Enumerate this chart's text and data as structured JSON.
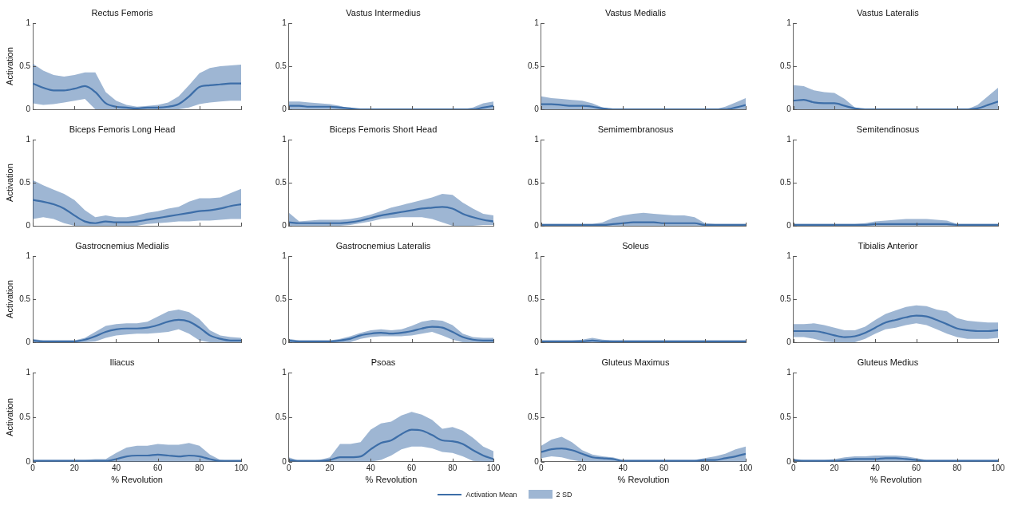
{
  "chart_data": [
    {
      "type": "line",
      "title": "Rectus Femoris",
      "ylabel": "Activation",
      "x": [
        0,
        5,
        10,
        15,
        20,
        25,
        30,
        35,
        40,
        45,
        50,
        55,
        60,
        65,
        70,
        75,
        80,
        85,
        90,
        95,
        100
      ],
      "xlim": [
        0,
        100
      ],
      "xticks": [
        {
          "value": 0,
          "label": null
        },
        {
          "value": 20,
          "label": null
        },
        {
          "value": 40,
          "label": null
        },
        {
          "value": 60,
          "label": null
        },
        {
          "value": 80,
          "label": null
        },
        {
          "value": 100,
          "label": null
        }
      ],
      "ylim": [
        0,
        1
      ],
      "yticks": [
        0,
        0.5,
        1
      ],
      "tick_labels": "y",
      "grid": false,
      "marker": "none",
      "series": [
        {
          "color": "#3d6ea8",
          "values": [
            0.3,
            0.25,
            0.22,
            0.22,
            0.24,
            0.27,
            0.2,
            0.07,
            0.03,
            0.02,
            0.01,
            0.02,
            0.02,
            0.03,
            0.06,
            0.15,
            0.26,
            0.28,
            0.29,
            0.3,
            0.3
          ],
          "lower": [
            0.07,
            0.05,
            0.06,
            0.08,
            0.1,
            0.12,
            0,
            0,
            0,
            0,
            0,
            0,
            0,
            0,
            0,
            0.02,
            0.06,
            0.08,
            0.09,
            0.1,
            0.1
          ],
          "upper": [
            0.53,
            0.45,
            0.4,
            0.38,
            0.4,
            0.43,
            0.43,
            0.2,
            0.1,
            0.05,
            0.03,
            0.04,
            0.05,
            0.08,
            0.15,
            0.28,
            0.42,
            0.48,
            0.5,
            0.51,
            0.52
          ]
        }
      ]
    },
    {
      "type": "line",
      "title": "Vastus Intermedius",
      "x": [
        0,
        5,
        10,
        15,
        20,
        25,
        30,
        35,
        40,
        45,
        50,
        55,
        60,
        65,
        70,
        75,
        80,
        85,
        90,
        95,
        100
      ],
      "xlim": [
        0,
        100
      ],
      "xticks": [
        {
          "value": 0,
          "label": null
        },
        {
          "value": 20,
          "label": null
        },
        {
          "value": 40,
          "label": null
        },
        {
          "value": 60,
          "label": null
        },
        {
          "value": 80,
          "label": null
        },
        {
          "value": 100,
          "label": null
        }
      ],
      "ylim": [
        0,
        1
      ],
      "yticks": [
        0,
        0.5,
        1
      ],
      "tick_labels": "y",
      "grid": false,
      "marker": "none",
      "series": [
        {
          "color": "#3d6ea8",
          "values": [
            0.04,
            0.04,
            0.03,
            0.03,
            0.03,
            0.02,
            0.01,
            0,
            0,
            0,
            0,
            0,
            0,
            0,
            0,
            0,
            0,
            0,
            0,
            0.02,
            0.04
          ],
          "lower": [
            0,
            0,
            0,
            0,
            0,
            0,
            0,
            0,
            0,
            0,
            0,
            0,
            0,
            0,
            0,
            0,
            0,
            0,
            0,
            0,
            0
          ],
          "upper": [
            0.09,
            0.09,
            0.08,
            0.07,
            0.06,
            0.04,
            0.01,
            0,
            0,
            0,
            0,
            0,
            0,
            0,
            0,
            0,
            0,
            0,
            0.02,
            0.07,
            0.09
          ]
        }
      ]
    },
    {
      "type": "line",
      "title": "Vastus Medialis",
      "x": [
        0,
        5,
        10,
        15,
        20,
        25,
        30,
        35,
        40,
        45,
        50,
        55,
        60,
        65,
        70,
        75,
        80,
        85,
        90,
        95,
        100
      ],
      "xlim": [
        0,
        100
      ],
      "xticks": [
        {
          "value": 0,
          "label": null
        },
        {
          "value": 20,
          "label": null
        },
        {
          "value": 40,
          "label": null
        },
        {
          "value": 60,
          "label": null
        },
        {
          "value": 80,
          "label": null
        },
        {
          "value": 100,
          "label": null
        }
      ],
      "ylim": [
        0,
        1
      ],
      "yticks": [
        0,
        0.5,
        1
      ],
      "tick_labels": "y",
      "grid": false,
      "marker": "none",
      "series": [
        {
          "color": "#3d6ea8",
          "values": [
            0.06,
            0.06,
            0.05,
            0.04,
            0.04,
            0.03,
            0.01,
            0,
            0,
            0,
            0,
            0,
            0,
            0,
            0,
            0,
            0,
            0,
            0,
            0.02,
            0.05
          ],
          "lower": [
            0,
            0,
            0,
            0,
            0,
            0,
            0,
            0,
            0,
            0,
            0,
            0,
            0,
            0,
            0,
            0,
            0,
            0,
            0,
            0,
            0
          ],
          "upper": [
            0.15,
            0.13,
            0.12,
            0.11,
            0.1,
            0.07,
            0.02,
            0,
            0,
            0,
            0,
            0,
            0,
            0,
            0,
            0,
            0,
            0,
            0.03,
            0.08,
            0.13
          ]
        }
      ]
    },
    {
      "type": "line",
      "title": "Vastus Lateralis",
      "x": [
        0,
        5,
        10,
        15,
        20,
        25,
        30,
        35,
        40,
        45,
        50,
        55,
        60,
        65,
        70,
        75,
        80,
        85,
        90,
        95,
        100
      ],
      "xlim": [
        0,
        100
      ],
      "xticks": [
        {
          "value": 0,
          "label": null
        },
        {
          "value": 20,
          "label": null
        },
        {
          "value": 40,
          "label": null
        },
        {
          "value": 60,
          "label": null
        },
        {
          "value": 80,
          "label": null
        },
        {
          "value": 100,
          "label": null
        }
      ],
      "ylim": [
        0,
        1
      ],
      "yticks": [
        0,
        0.5,
        1
      ],
      "tick_labels": "y",
      "grid": false,
      "marker": "none",
      "series": [
        {
          "color": "#3d6ea8",
          "values": [
            0.1,
            0.11,
            0.08,
            0.07,
            0.07,
            0.04,
            0.01,
            0,
            0,
            0,
            0,
            0,
            0,
            0,
            0,
            0,
            0,
            0,
            0.01,
            0.05,
            0.09
          ],
          "lower": [
            0,
            0,
            0,
            0,
            0,
            0,
            0,
            0,
            0,
            0,
            0,
            0,
            0,
            0,
            0,
            0,
            0,
            0,
            0,
            0,
            0
          ],
          "upper": [
            0.28,
            0.27,
            0.22,
            0.2,
            0.19,
            0.12,
            0.02,
            0,
            0,
            0,
            0,
            0,
            0,
            0,
            0,
            0,
            0,
            0,
            0.05,
            0.15,
            0.25
          ]
        }
      ]
    },
    {
      "type": "line",
      "title": "Biceps Femoris Long Head",
      "ylabel": "Activation",
      "x": [
        0,
        5,
        10,
        15,
        20,
        25,
        30,
        35,
        40,
        45,
        50,
        55,
        60,
        65,
        70,
        75,
        80,
        85,
        90,
        95,
        100
      ],
      "xlim": [
        0,
        100
      ],
      "xticks": [
        {
          "value": 0,
          "label": null
        },
        {
          "value": 20,
          "label": null
        },
        {
          "value": 40,
          "label": null
        },
        {
          "value": 60,
          "label": null
        },
        {
          "value": 80,
          "label": null
        },
        {
          "value": 100,
          "label": null
        }
      ],
      "ylim": [
        0,
        1
      ],
      "yticks": [
        0,
        0.5,
        1
      ],
      "tick_labels": "y",
      "grid": false,
      "marker": "none",
      "series": [
        {
          "color": "#3d6ea8",
          "values": [
            0.3,
            0.28,
            0.25,
            0.2,
            0.12,
            0.05,
            0.03,
            0.05,
            0.04,
            0.04,
            0.05,
            0.07,
            0.09,
            0.11,
            0.13,
            0.15,
            0.17,
            0.18,
            0.2,
            0.23,
            0.25
          ],
          "lower": [
            0.08,
            0.1,
            0.08,
            0.03,
            0,
            0,
            0,
            0,
            0,
            0,
            0,
            0.02,
            0.03,
            0.04,
            0.05,
            0.05,
            0.06,
            0.06,
            0.07,
            0.08,
            0.08
          ],
          "upper": [
            0.53,
            0.47,
            0.42,
            0.37,
            0.3,
            0.18,
            0.1,
            0.12,
            0.1,
            0.1,
            0.12,
            0.15,
            0.17,
            0.2,
            0.22,
            0.28,
            0.32,
            0.32,
            0.33,
            0.38,
            0.43
          ]
        }
      ]
    },
    {
      "type": "line",
      "title": "Biceps Femoris Short Head",
      "x": [
        0,
        5,
        10,
        15,
        20,
        25,
        30,
        35,
        40,
        45,
        50,
        55,
        60,
        65,
        70,
        75,
        80,
        85,
        90,
        95,
        100
      ],
      "xlim": [
        0,
        100
      ],
      "xticks": [
        {
          "value": 0,
          "label": null
        },
        {
          "value": 20,
          "label": null
        },
        {
          "value": 40,
          "label": null
        },
        {
          "value": 60,
          "label": null
        },
        {
          "value": 80,
          "label": null
        },
        {
          "value": 100,
          "label": null
        }
      ],
      "ylim": [
        0,
        1
      ],
      "yticks": [
        0,
        0.5,
        1
      ],
      "tick_labels": "y",
      "grid": false,
      "marker": "none",
      "series": [
        {
          "color": "#3d6ea8",
          "values": [
            0.04,
            0.03,
            0.03,
            0.03,
            0.03,
            0.03,
            0.04,
            0.06,
            0.09,
            0.12,
            0.14,
            0.16,
            0.18,
            0.2,
            0.21,
            0.22,
            0.2,
            0.14,
            0.1,
            0.07,
            0.05
          ],
          "lower": [
            0,
            0,
            0,
            0,
            0,
            0,
            0.01,
            0.03,
            0.05,
            0.08,
            0.09,
            0.1,
            0.1,
            0.1,
            0.08,
            0.04,
            0,
            0,
            0,
            0.01,
            0.01
          ],
          "upper": [
            0.15,
            0.05,
            0.06,
            0.07,
            0.07,
            0.07,
            0.08,
            0.1,
            0.13,
            0.17,
            0.21,
            0.24,
            0.27,
            0.3,
            0.33,
            0.37,
            0.36,
            0.27,
            0.2,
            0.14,
            0.12
          ]
        }
      ]
    },
    {
      "type": "line",
      "title": "Semimembranosus",
      "x": [
        0,
        5,
        10,
        15,
        20,
        25,
        30,
        35,
        40,
        45,
        50,
        55,
        60,
        65,
        70,
        75,
        80,
        85,
        90,
        95,
        100
      ],
      "xlim": [
        0,
        100
      ],
      "xticks": [
        {
          "value": 0,
          "label": null
        },
        {
          "value": 20,
          "label": null
        },
        {
          "value": 40,
          "label": null
        },
        {
          "value": 60,
          "label": null
        },
        {
          "value": 80,
          "label": null
        },
        {
          "value": 100,
          "label": null
        }
      ],
      "ylim": [
        0,
        1
      ],
      "yticks": [
        0,
        0.5,
        1
      ],
      "tick_labels": "y",
      "grid": false,
      "marker": "none",
      "series": [
        {
          "color": "#3d6ea8",
          "values": [
            0.01,
            0.01,
            0.01,
            0.01,
            0.01,
            0.01,
            0.01,
            0.02,
            0.03,
            0.04,
            0.04,
            0.04,
            0.03,
            0.03,
            0.03,
            0.03,
            0.01,
            0.01,
            0.01,
            0.01,
            0.01
          ],
          "lower": [
            0,
            0,
            0,
            0,
            0,
            0,
            0,
            0,
            0,
            0,
            0,
            0,
            0,
            0,
            0,
            0,
            0,
            0,
            0,
            0,
            0
          ],
          "upper": [
            0.02,
            0.02,
            0.02,
            0.02,
            0.02,
            0.02,
            0.04,
            0.09,
            0.12,
            0.14,
            0.15,
            0.14,
            0.13,
            0.12,
            0.12,
            0.1,
            0.03,
            0.02,
            0.02,
            0.02,
            0.02
          ]
        }
      ]
    },
    {
      "type": "line",
      "title": "Semitendinosus",
      "x": [
        0,
        5,
        10,
        15,
        20,
        25,
        30,
        35,
        40,
        45,
        50,
        55,
        60,
        65,
        70,
        75,
        80,
        85,
        90,
        95,
        100
      ],
      "xlim": [
        0,
        100
      ],
      "xticks": [
        {
          "value": 0,
          "label": null
        },
        {
          "value": 20,
          "label": null
        },
        {
          "value": 40,
          "label": null
        },
        {
          "value": 60,
          "label": null
        },
        {
          "value": 80,
          "label": null
        },
        {
          "value": 100,
          "label": null
        }
      ],
      "ylim": [
        0,
        1
      ],
      "yticks": [
        0,
        0.5,
        1
      ],
      "tick_labels": "y",
      "grid": false,
      "marker": "none",
      "series": [
        {
          "color": "#3d6ea8",
          "values": [
            0.01,
            0.01,
            0.01,
            0.01,
            0.01,
            0.01,
            0.01,
            0.01,
            0.02,
            0.02,
            0.02,
            0.02,
            0.02,
            0.02,
            0.02,
            0.02,
            0.01,
            0.01,
            0.01,
            0.01,
            0.01
          ],
          "lower": [
            0,
            0,
            0,
            0,
            0,
            0,
            0,
            0,
            0,
            0,
            0,
            0,
            0,
            0,
            0,
            0,
            0,
            0,
            0,
            0,
            0
          ],
          "upper": [
            0.02,
            0.02,
            0.02,
            0.02,
            0.02,
            0.02,
            0.02,
            0.03,
            0.05,
            0.06,
            0.07,
            0.08,
            0.08,
            0.08,
            0.07,
            0.06,
            0.02,
            0.02,
            0.02,
            0.02,
            0.02
          ]
        }
      ]
    },
    {
      "type": "line",
      "title": "Gastrocnemius Medialis",
      "ylabel": "Activation",
      "x": [
        0,
        5,
        10,
        15,
        20,
        25,
        30,
        35,
        40,
        45,
        50,
        55,
        60,
        65,
        70,
        75,
        80,
        85,
        90,
        95,
        100
      ],
      "xlim": [
        0,
        100
      ],
      "xticks": [
        {
          "value": 0,
          "label": null
        },
        {
          "value": 20,
          "label": null
        },
        {
          "value": 40,
          "label": null
        },
        {
          "value": 60,
          "label": null
        },
        {
          "value": 80,
          "label": null
        },
        {
          "value": 100,
          "label": null
        }
      ],
      "ylim": [
        0,
        1
      ],
      "yticks": [
        0,
        0.5,
        1
      ],
      "tick_labels": "y",
      "grid": false,
      "marker": "none",
      "series": [
        {
          "color": "#3d6ea8",
          "values": [
            0.02,
            0.01,
            0.01,
            0.01,
            0.01,
            0.03,
            0.07,
            0.12,
            0.15,
            0.16,
            0.16,
            0.17,
            0.2,
            0.24,
            0.26,
            0.24,
            0.17,
            0.08,
            0.04,
            0.02,
            0.02
          ],
          "lower": [
            0,
            0,
            0,
            0,
            0,
            0,
            0.01,
            0.05,
            0.08,
            0.09,
            0.1,
            0.1,
            0.11,
            0.12,
            0.15,
            0.1,
            0.02,
            0,
            0,
            0,
            0
          ],
          "upper": [
            0.04,
            0.02,
            0.02,
            0.02,
            0.02,
            0.05,
            0.12,
            0.19,
            0.21,
            0.22,
            0.22,
            0.24,
            0.3,
            0.36,
            0.38,
            0.35,
            0.27,
            0.14,
            0.08,
            0.06,
            0.05
          ]
        }
      ]
    },
    {
      "type": "line",
      "title": "Gastrocnemius Lateralis",
      "x": [
        0,
        5,
        10,
        15,
        20,
        25,
        30,
        35,
        40,
        45,
        50,
        55,
        60,
        65,
        70,
        75,
        80,
        85,
        90,
        95,
        100
      ],
      "xlim": [
        0,
        100
      ],
      "xticks": [
        {
          "value": 0,
          "label": null
        },
        {
          "value": 20,
          "label": null
        },
        {
          "value": 40,
          "label": null
        },
        {
          "value": 60,
          "label": null
        },
        {
          "value": 80,
          "label": null
        },
        {
          "value": 100,
          "label": null
        }
      ],
      "ylim": [
        0,
        1
      ],
      "yticks": [
        0,
        0.5,
        1
      ],
      "tick_labels": "y",
      "grid": false,
      "marker": "none",
      "series": [
        {
          "color": "#3d6ea8",
          "values": [
            0.02,
            0.01,
            0.01,
            0.01,
            0.01,
            0.02,
            0.04,
            0.08,
            0.1,
            0.11,
            0.1,
            0.11,
            0.13,
            0.16,
            0.18,
            0.17,
            0.12,
            0.06,
            0.03,
            0.02,
            0.02
          ],
          "lower": [
            0,
            0,
            0,
            0,
            0,
            0,
            0,
            0.04,
            0.06,
            0.07,
            0.07,
            0.07,
            0.08,
            0.1,
            0.12,
            0.08,
            0.03,
            0,
            0,
            0,
            0
          ],
          "upper": [
            0.04,
            0.02,
            0.02,
            0.02,
            0.02,
            0.04,
            0.07,
            0.11,
            0.14,
            0.15,
            0.14,
            0.15,
            0.19,
            0.24,
            0.26,
            0.25,
            0.2,
            0.1,
            0.06,
            0.05,
            0.05
          ]
        }
      ]
    },
    {
      "type": "line",
      "title": "Soleus",
      "x": [
        0,
        5,
        10,
        15,
        20,
        25,
        30,
        35,
        40,
        45,
        50,
        55,
        60,
        65,
        70,
        75,
        80,
        85,
        90,
        95,
        100
      ],
      "xlim": [
        0,
        100
      ],
      "xticks": [
        {
          "value": 0,
          "label": null
        },
        {
          "value": 20,
          "label": null
        },
        {
          "value": 40,
          "label": null
        },
        {
          "value": 60,
          "label": null
        },
        {
          "value": 80,
          "label": null
        },
        {
          "value": 100,
          "label": null
        }
      ],
      "ylim": [
        0,
        1
      ],
      "yticks": [
        0,
        0.5,
        1
      ],
      "tick_labels": "y",
      "grid": false,
      "marker": "none",
      "series": [
        {
          "color": "#3d6ea8",
          "values": [
            0.01,
            0.01,
            0.01,
            0.01,
            0.01,
            0.02,
            0.01,
            0.01,
            0.01,
            0.01,
            0.01,
            0.01,
            0.01,
            0.01,
            0.01,
            0.01,
            0.01,
            0.01,
            0.01,
            0.01,
            0.01
          ],
          "lower": [
            0,
            0,
            0,
            0,
            0,
            0,
            0,
            0,
            0,
            0,
            0,
            0,
            0,
            0,
            0,
            0,
            0,
            0,
            0,
            0,
            0
          ],
          "upper": [
            0.02,
            0.02,
            0.02,
            0.02,
            0.03,
            0.05,
            0.03,
            0.02,
            0.02,
            0.02,
            0.02,
            0.02,
            0.02,
            0.02,
            0.02,
            0.02,
            0.02,
            0.02,
            0.02,
            0.02,
            0.02
          ]
        }
      ]
    },
    {
      "type": "line",
      "title": "Tibialis Anterior",
      "x": [
        0,
        5,
        10,
        15,
        20,
        25,
        30,
        35,
        40,
        45,
        50,
        55,
        60,
        65,
        70,
        75,
        80,
        85,
        90,
        95,
        100
      ],
      "xlim": [
        0,
        100
      ],
      "xticks": [
        {
          "value": 0,
          "label": null
        },
        {
          "value": 20,
          "label": null
        },
        {
          "value": 40,
          "label": null
        },
        {
          "value": 60,
          "label": null
        },
        {
          "value": 80,
          "label": null
        },
        {
          "value": 100,
          "label": null
        }
      ],
      "ylim": [
        0,
        1
      ],
      "yticks": [
        0,
        0.5,
        1
      ],
      "tick_labels": "y",
      "grid": false,
      "marker": "none",
      "series": [
        {
          "color": "#3d6ea8",
          "values": [
            0.13,
            0.13,
            0.13,
            0.11,
            0.08,
            0.06,
            0.07,
            0.11,
            0.17,
            0.23,
            0.26,
            0.29,
            0.31,
            0.3,
            0.26,
            0.21,
            0.16,
            0.14,
            0.13,
            0.13,
            0.14
          ],
          "lower": [
            0.06,
            0.06,
            0.04,
            0.01,
            0,
            0,
            0,
            0.04,
            0.1,
            0.15,
            0.17,
            0.2,
            0.22,
            0.2,
            0.15,
            0.1,
            0.06,
            0.04,
            0.04,
            0.04,
            0.05
          ],
          "upper": [
            0.21,
            0.21,
            0.22,
            0.2,
            0.17,
            0.14,
            0.14,
            0.18,
            0.26,
            0.33,
            0.37,
            0.41,
            0.43,
            0.42,
            0.38,
            0.36,
            0.28,
            0.25,
            0.24,
            0.23,
            0.23
          ]
        }
      ]
    },
    {
      "type": "line",
      "title": "Iliacus",
      "xlabel": "% Revolution",
      "ylabel": "Activation",
      "x": [
        0,
        5,
        10,
        15,
        20,
        25,
        30,
        35,
        40,
        45,
        50,
        55,
        60,
        65,
        70,
        75,
        80,
        85,
        90,
        95,
        100
      ],
      "xlim": [
        0,
        100
      ],
      "xticks": [
        0,
        20,
        40,
        60,
        80,
        100
      ],
      "ylim": [
        0,
        1
      ],
      "yticks": [
        0,
        0.5,
        1
      ],
      "grid": false,
      "marker": "none",
      "series": [
        {
          "color": "#3d6ea8",
          "values": [
            0.01,
            0.01,
            0.01,
            0.01,
            0.01,
            0.01,
            0.01,
            0.01,
            0.03,
            0.06,
            0.07,
            0.07,
            0.08,
            0.07,
            0.06,
            0.07,
            0.06,
            0.03,
            0.01,
            0.01,
            0.01
          ],
          "lower": [
            0,
            0,
            0,
            0,
            0,
            0,
            0,
            0,
            0,
            0,
            0,
            0,
            0,
            0,
            0,
            0,
            0,
            0,
            0,
            0,
            0
          ],
          "upper": [
            0.02,
            0.02,
            0.02,
            0.02,
            0.02,
            0.02,
            0.03,
            0.03,
            0.1,
            0.16,
            0.18,
            0.18,
            0.2,
            0.19,
            0.19,
            0.21,
            0.18,
            0.08,
            0.02,
            0.01,
            0.01
          ]
        }
      ]
    },
    {
      "type": "line",
      "title": "Psoas",
      "xlabel": "% Revolution",
      "x": [
        0,
        5,
        10,
        15,
        20,
        25,
        30,
        35,
        40,
        45,
        50,
        55,
        60,
        65,
        70,
        75,
        80,
        85,
        90,
        95,
        100
      ],
      "xlim": [
        0,
        100
      ],
      "xticks": [
        0,
        20,
        40,
        60,
        80,
        100
      ],
      "ylim": [
        0,
        1
      ],
      "yticks": [
        0,
        0.5,
        1
      ],
      "grid": false,
      "marker": "none",
      "legend": "bottom",
      "annotations": [
        "2 SD"
      ],
      "series": [
        {
          "name": "Activation Mean",
          "color": "#3d6ea8",
          "values": [
            0.02,
            0.01,
            0.01,
            0.01,
            0.02,
            0.05,
            0.05,
            0.06,
            0.14,
            0.21,
            0.24,
            0.31,
            0.36,
            0.35,
            0.3,
            0.24,
            0.23,
            0.2,
            0.13,
            0.07,
            0.03
          ],
          "lower": [
            0,
            0,
            0,
            0,
            0,
            0,
            0,
            0,
            0,
            0.02,
            0.07,
            0.14,
            0.17,
            0.17,
            0.15,
            0.11,
            0.1,
            0.06,
            0.01,
            0,
            0
          ],
          "upper": [
            0.05,
            0.01,
            0.01,
            0.02,
            0.05,
            0.2,
            0.2,
            0.22,
            0.36,
            0.43,
            0.45,
            0.52,
            0.56,
            0.53,
            0.47,
            0.37,
            0.39,
            0.35,
            0.27,
            0.17,
            0.12
          ]
        }
      ]
    },
    {
      "type": "line",
      "title": "Gluteus Maximus",
      "xlabel": "% Revolution",
      "x": [
        0,
        5,
        10,
        15,
        20,
        25,
        30,
        35,
        40,
        45,
        50,
        55,
        60,
        65,
        70,
        75,
        80,
        85,
        90,
        95,
        100
      ],
      "xlim": [
        0,
        100
      ],
      "xticks": [
        0,
        20,
        40,
        60,
        80,
        100
      ],
      "ylim": [
        0,
        1
      ],
      "yticks": [
        0,
        0.5,
        1
      ],
      "grid": false,
      "marker": "none",
      "series": [
        {
          "color": "#3d6ea8",
          "values": [
            0.11,
            0.14,
            0.15,
            0.13,
            0.09,
            0.05,
            0.04,
            0.03,
            0.01,
            0.01,
            0.01,
            0.01,
            0.01,
            0.01,
            0.01,
            0.01,
            0.02,
            0.02,
            0.04,
            0.06,
            0.09
          ],
          "lower": [
            0.04,
            0.06,
            0.05,
            0.02,
            0,
            0,
            0,
            0,
            0,
            0,
            0,
            0,
            0,
            0,
            0,
            0,
            0,
            0,
            0,
            0,
            0
          ],
          "upper": [
            0.18,
            0.25,
            0.28,
            0.22,
            0.13,
            0.08,
            0.06,
            0.05,
            0.02,
            0.02,
            0.02,
            0.02,
            0.02,
            0.02,
            0.02,
            0.02,
            0.04,
            0.06,
            0.09,
            0.14,
            0.17
          ]
        }
      ]
    },
    {
      "type": "line",
      "title": "Gluteus Medius",
      "xlabel": "% Revolution",
      "x": [
        0,
        5,
        10,
        15,
        20,
        25,
        30,
        35,
        40,
        45,
        50,
        55,
        60,
        65,
        70,
        75,
        80,
        85,
        90,
        95,
        100
      ],
      "xlim": [
        0,
        100
      ],
      "xticks": [
        0,
        20,
        40,
        60,
        80,
        100
      ],
      "ylim": [
        0,
        1
      ],
      "yticks": [
        0,
        0.5,
        1
      ],
      "grid": false,
      "marker": "none",
      "series": [
        {
          "color": "#3d6ea8",
          "values": [
            0.02,
            0.01,
            0.01,
            0.01,
            0.01,
            0.02,
            0.03,
            0.03,
            0.03,
            0.04,
            0.04,
            0.03,
            0.02,
            0.01,
            0.01,
            0.01,
            0.01,
            0.01,
            0.01,
            0.01,
            0.01
          ],
          "lower": [
            0,
            0,
            0,
            0,
            0,
            0,
            0,
            0,
            0,
            0,
            0,
            0,
            0,
            0,
            0,
            0,
            0,
            0,
            0,
            0,
            0
          ],
          "upper": [
            0.03,
            0.02,
            0.02,
            0.02,
            0.03,
            0.05,
            0.06,
            0.06,
            0.07,
            0.07,
            0.07,
            0.06,
            0.04,
            0.02,
            0.02,
            0.02,
            0.02,
            0.02,
            0.02,
            0.02,
            0.02
          ]
        }
      ]
    }
  ]
}
